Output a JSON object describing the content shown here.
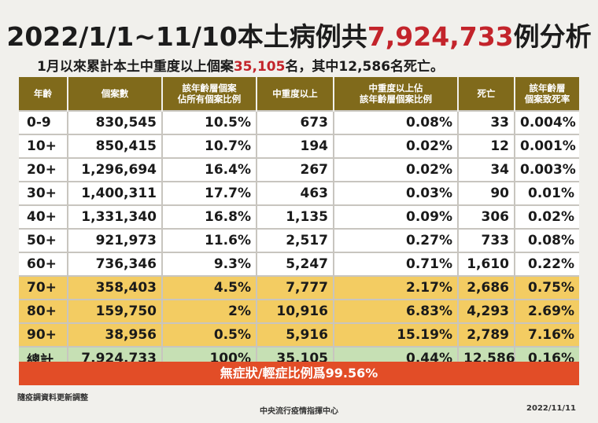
{
  "title": {
    "prefix": "2022/1/1~11/10本土病例共",
    "highlight": "7,924,733",
    "suffix": "例分析"
  },
  "subtitle": {
    "prefix": "1月以來累計本土中重度以上個案",
    "highlight": "35,105",
    "suffix": "名，其中12,586名死亡。"
  },
  "table": {
    "headers": [
      [
        "年齡"
      ],
      [
        "個案數"
      ],
      [
        "該年齡層個案",
        "佔所有個案比例"
      ],
      [
        "中重度以上"
      ],
      [
        "中重度以上佔",
        "該年齡層個案比例"
      ],
      [
        "死亡"
      ],
      [
        "該年齡層",
        "個案致死率"
      ]
    ],
    "rows": [
      [
        "0-9",
        "830,545",
        "10.5%",
        "673",
        "0.08%",
        "33",
        "0.004%"
      ],
      [
        "10+",
        "850,415",
        "10.7%",
        "194",
        "0.02%",
        "12",
        "0.001%"
      ],
      [
        "20+",
        "1,296,694",
        "16.4%",
        "267",
        "0.02%",
        "34",
        "0.003%"
      ],
      [
        "30+",
        "1,400,311",
        "17.7%",
        "463",
        "0.03%",
        "90",
        "0.01%"
      ],
      [
        "40+",
        "1,331,340",
        "16.8%",
        "1,135",
        "0.09%",
        "306",
        "0.02%"
      ],
      [
        "50+",
        "921,973",
        "11.6%",
        "2,517",
        "0.27%",
        "733",
        "0.08%"
      ],
      [
        "60+",
        "736,346",
        "9.3%",
        "5,247",
        "0.71%",
        "1,610",
        "0.22%"
      ],
      [
        "70+",
        "358,403",
        "4.5%",
        "7,777",
        "2.17%",
        "2,686",
        "0.75%"
      ],
      [
        "80+",
        "159,750",
        "2%",
        "10,916",
        "6.83%",
        "4,293",
        "2.69%"
      ],
      [
        "90+",
        "38,956",
        "0.5%",
        "5,916",
        "15.19%",
        "2,789",
        "7.16%"
      ]
    ],
    "total": [
      "總計",
      "7,924,733",
      "100%",
      "35,105",
      "0.44%",
      "12,586",
      "0.16%"
    ]
  },
  "banner": "無症狀/輕症比例爲99.56%",
  "note": "隨疫調資料更新調整",
  "footer": {
    "org": "中央流行疫情指揮中心",
    "date": "2022/11/11"
  },
  "colors": {
    "header": "#806a1b",
    "highlight_red": "#c3242b",
    "elderly_rows": "#f3cc62",
    "total_row": "#c6e0b4",
    "banner": "#e24d27"
  }
}
